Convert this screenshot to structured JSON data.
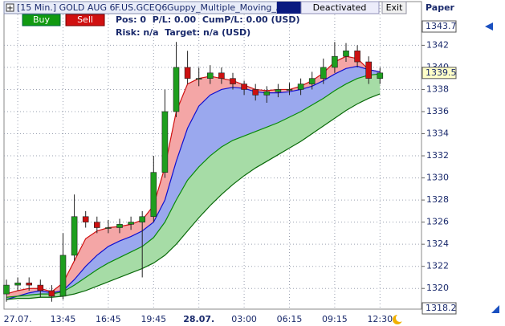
{
  "header": {
    "instrument": "[15 Min.] GOLD AUG 6",
    "symbol": "F.US.GCEQ6",
    "strategy": "Guppy_Multiple_Moving_Aver",
    "status": "Deactivated",
    "exit": "Exit",
    "account": "Paper",
    "buy": "Buy",
    "sell": "Sell",
    "position": "Pos: 0  P/L: 0.00  CumP/L: 0.00 (USD)",
    "risk": "Risk: n/a  Target: n/a (USD)"
  },
  "chart_data": {
    "type": "candlestick",
    "categories": [
      null,
      "27.07.",
      null,
      null,
      null,
      "13:45",
      null,
      null,
      null,
      "16:45",
      null,
      null,
      null,
      "19:45",
      null,
      null,
      null,
      "28.07.",
      null,
      null,
      null,
      "03:00",
      null,
      null,
      null,
      "06:15",
      null,
      null,
      null,
      "09:15",
      null,
      null,
      null,
      "12:30"
    ],
    "open": [
      1319.5,
      1320.3,
      1320.5,
      1320.3,
      1319.8,
      1319.3,
      1323,
      1326.5,
      1326,
      1325.5,
      1325.5,
      1325.8,
      1326,
      1326.5,
      1330.5,
      1336,
      1340,
      1339,
      1339,
      1339.5,
      1339,
      1338.5,
      1338,
      1337.5,
      1337.8,
      1338,
      1338,
      1338.5,
      1339,
      1340,
      1341,
      1341.5,
      1340.5,
      1339
    ],
    "high": [
      1320.8,
      1321,
      1321,
      1320.8,
      1320.3,
      1325,
      1328.5,
      1327,
      1326.5,
      1326.2,
      1326.3,
      1326.5,
      1327,
      1332,
      1338,
      1342.3,
      1341.5,
      1340,
      1340.2,
      1340,
      1339.5,
      1338.8,
      1338.5,
      1338.3,
      1338.5,
      1338.6,
      1339,
      1339.6,
      1340.8,
      1342.3,
      1342.2,
      1342,
      1341,
      1340
    ],
    "low": [
      1318.8,
      1319.8,
      1319.8,
      1319.2,
      1318.8,
      1319,
      1322.5,
      1325.5,
      1325,
      1325,
      1325,
      1325.3,
      1321,
      1326,
      1330,
      1335.5,
      1338.5,
      1338.3,
      1338.5,
      1338.5,
      1338,
      1337.5,
      1337,
      1336.8,
      1337.3,
      1337.5,
      1337.5,
      1338,
      1338.5,
      1339.5,
      1340.5,
      1340,
      1338.5,
      1338.5
    ],
    "close": [
      1320.3,
      1320.5,
      1320.3,
      1319.8,
      1319.3,
      1323,
      1326.5,
      1326,
      1325.5,
      1325.5,
      1325.8,
      1326,
      1326.5,
      1330.5,
      1336,
      1340,
      1339,
      1339,
      1339.5,
      1339,
      1338.5,
      1338,
      1337.5,
      1337.8,
      1338,
      1338,
      1338.5,
      1339,
      1340,
      1341,
      1341.5,
      1340.5,
      1339,
      1339.5
    ],
    "up_color": "#1e9e1e",
    "down_color": "#cc1010",
    "series": [
      {
        "color": "#d01010",
        "fill": "#f4a6a6",
        "values": [
          1319.5,
          1319.8,
          1320,
          1320,
          1319.7,
          1320.5,
          1322.5,
          1324.5,
          1325.2,
          1325.5,
          1325.6,
          1325.8,
          1326.2,
          1327.5,
          1331,
          1336,
          1338.5,
          1339,
          1339.2,
          1339,
          1338.8,
          1338.4,
          1338,
          1337.9,
          1338,
          1338,
          1338.3,
          1338.8,
          1339.5,
          1340.5,
          1341,
          1340.8,
          1339.8,
          1339.6
        ]
      },
      {
        "color": "#1010d0",
        "fill": "#9aa8ee",
        "values": [
          1319,
          1319.3,
          1319.6,
          1319.8,
          1319.6,
          1319.8,
          1320.8,
          1322,
          1323,
          1323.8,
          1324.3,
          1324.7,
          1325.2,
          1326,
          1328,
          1331.5,
          1334.5,
          1336.5,
          1337.5,
          1338,
          1338.2,
          1338.1,
          1337.8,
          1337.7,
          1337.7,
          1337.8,
          1338,
          1338.3,
          1338.8,
          1339.4,
          1339.9,
          1340.1,
          1339.8,
          1339.6
        ]
      },
      {
        "color": "#0a8a0a",
        "fill": "#a6dca6",
        "values": [
          1319.2,
          1319.3,
          1319.4,
          1319.5,
          1319.5,
          1319.7,
          1320.3,
          1321,
          1321.7,
          1322.3,
          1322.8,
          1323.3,
          1323.8,
          1324.6,
          1326,
          1328,
          1329.8,
          1331,
          1332,
          1332.8,
          1333.4,
          1333.8,
          1334.2,
          1334.6,
          1335,
          1335.5,
          1336,
          1336.6,
          1337.2,
          1337.9,
          1338.5,
          1339,
          1339.3,
          1339.4
        ]
      },
      {
        "color": "#0a6a0a",
        "values": [
          1319,
          1319.1,
          1319.1,
          1319.2,
          1319.2,
          1319.3,
          1319.5,
          1319.8,
          1320.2,
          1320.6,
          1321,
          1321.4,
          1321.8,
          1322.3,
          1323,
          1324,
          1325.2,
          1326.4,
          1327.5,
          1328.5,
          1329.4,
          1330.2,
          1330.9,
          1331.5,
          1332.1,
          1332.7,
          1333.3,
          1334,
          1334.7,
          1335.4,
          1336.1,
          1336.7,
          1337.2,
          1337.6
        ]
      }
    ],
    "ylim": [
      1318.2,
      1343.7
    ],
    "yticks": [
      1320,
      1322,
      1324,
      1326,
      1328,
      1330,
      1332,
      1334,
      1336,
      1338,
      1340,
      1342
    ],
    "last_price": 1339.5,
    "grid": true
  }
}
